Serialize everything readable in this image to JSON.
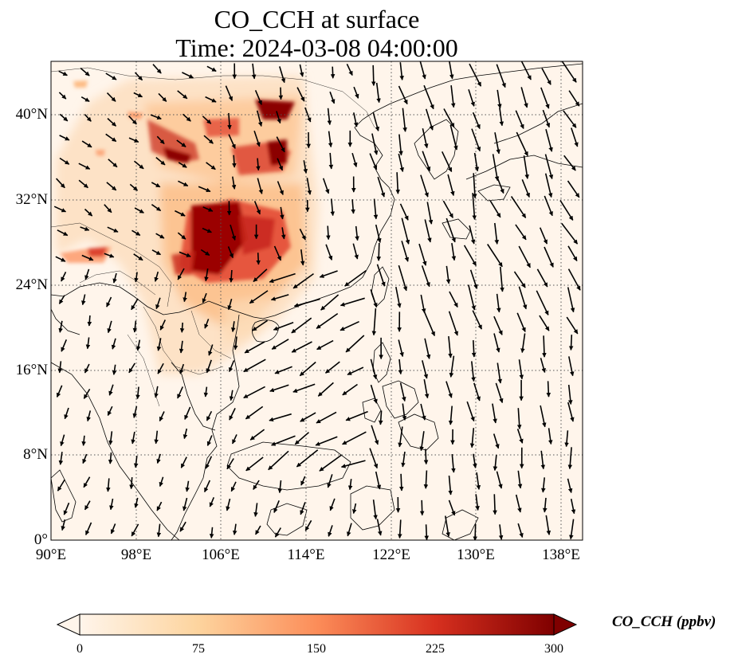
{
  "title": {
    "line1": "CO_CCH at surface",
    "line2": "Time: 2024-03-08 04:00:00"
  },
  "map": {
    "lon_range": [
      90,
      140
    ],
    "lat_range": [
      0,
      45
    ],
    "gridlines": "dotted",
    "x_ticks": [
      "90°E",
      "98°E",
      "106°E",
      "114°E",
      "122°E",
      "130°E",
      "138°E"
    ],
    "y_ticks": [
      "0°",
      "8°N",
      "16°N",
      "24°N",
      "32°N",
      "40°N"
    ],
    "field": "CO_CCH",
    "wind_vectors": "arrows"
  },
  "colorbar": {
    "label": "CO_CCH (ppbv)",
    "ticks": [
      "0",
      "75",
      "150",
      "225",
      "300"
    ],
    "min": 0,
    "max": 300,
    "extend": "both",
    "colors": [
      "#fff5eb",
      "#fdd49e",
      "#fc8d59",
      "#d7301f",
      "#7f0000"
    ]
  }
}
